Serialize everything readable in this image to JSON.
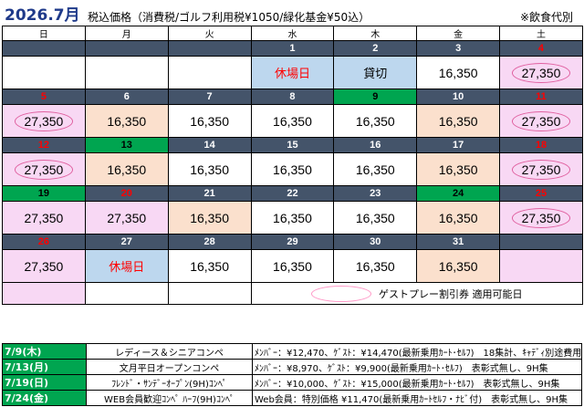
{
  "header": {
    "month": "2026.7月",
    "price_note": "税込価格（消費税/ゴルフ利用税¥1050/緑化基金¥50込）",
    "food_note": "※飲食代別"
  },
  "weekdays": [
    "日",
    "月",
    "火",
    "水",
    "木",
    "金",
    "土"
  ],
  "weeks": [
    {
      "days": [
        "",
        "",
        "",
        "1",
        "2",
        "3",
        "4"
      ],
      "prices": [
        "",
        "",
        "",
        "休場日",
        "貸切",
        "16,350",
        "27,350"
      ]
    },
    {
      "days": [
        "5",
        "6",
        "7",
        "8",
        "9",
        "10",
        "11"
      ],
      "prices": [
        "27,350",
        "16,350",
        "16,350",
        "16,350",
        "16,350",
        "16,350",
        "27,350"
      ]
    },
    {
      "days": [
        "12",
        "13",
        "14",
        "15",
        "16",
        "17",
        "18"
      ],
      "prices": [
        "27,350",
        "16,350",
        "16,350",
        "16,350",
        "16,350",
        "16,350",
        "27,350"
      ]
    },
    {
      "days": [
        "19",
        "20",
        "21",
        "22",
        "23",
        "24",
        "25"
      ],
      "prices": [
        "27,350",
        "27,350",
        "16,350",
        "16,350",
        "16,350",
        "16,350",
        "27,350"
      ]
    },
    {
      "days": [
        "26",
        "27",
        "28",
        "29",
        "30",
        "31",
        ""
      ],
      "prices": [
        "27,350",
        "休場日",
        "16,350",
        "16,350",
        "16,350",
        "16,350",
        ""
      ]
    }
  ],
  "legend": {
    "text": "ゲストプレー割引券 適用可能日"
  },
  "events": [
    {
      "date": "7/9(木)",
      "name": "レディース＆シニアコンペ",
      "detail": "ﾒﾝﾊﾞｰ：¥12,470、ｹﾞｽﾄ：¥14,470(最新乗用ｶｰﾄ･ｾﾙﾌ)　18集計、ｷｬﾃﾞｨ別途費用"
    },
    {
      "date": "7/13(月)",
      "name": "文月平日オープンコンペ",
      "detail": "ﾒﾝﾊﾞｰ：¥8,970、ｹﾞｽﾄ：¥9,900(最新乗用ｶｰﾄ･ｾﾙﾌ)　表彰式無し、9H集"
    },
    {
      "date": "7/19(日)",
      "name": "ﾌﾚﾝﾄﾞ・ｻﾝﾃﾞｰｵｰﾌﾟﾝ(9H)ｺﾝﾍﾟ",
      "detail": "ﾒﾝﾊﾞｰ：¥10,000、ｹﾞｽﾄ：¥15,000(最新乗用ｶｰﾄ･ｾﾙﾌ)　表彰式無し、9H集"
    },
    {
      "date": "7/24(金)",
      "name": "WEB会員歓迎ｺﾝﾍﾟ ﾊｰﾌ(9H)ｺﾝﾍﾟ",
      "detail": "Web会員：特別価格 ¥11,470(最新乗用ｶｰﾄｾﾙﾌ・ﾅﾋﾞ付)　表彰式無し、9H集"
    }
  ],
  "colors": {
    "day_header_bg": "#44546a",
    "holiday_green": "#00a550",
    "weekend_pink": "#f8d8f4",
    "discount_peach": "#fbe0cd",
    "event_blue": "#bdd7ee",
    "red_text": "#ff0000"
  }
}
